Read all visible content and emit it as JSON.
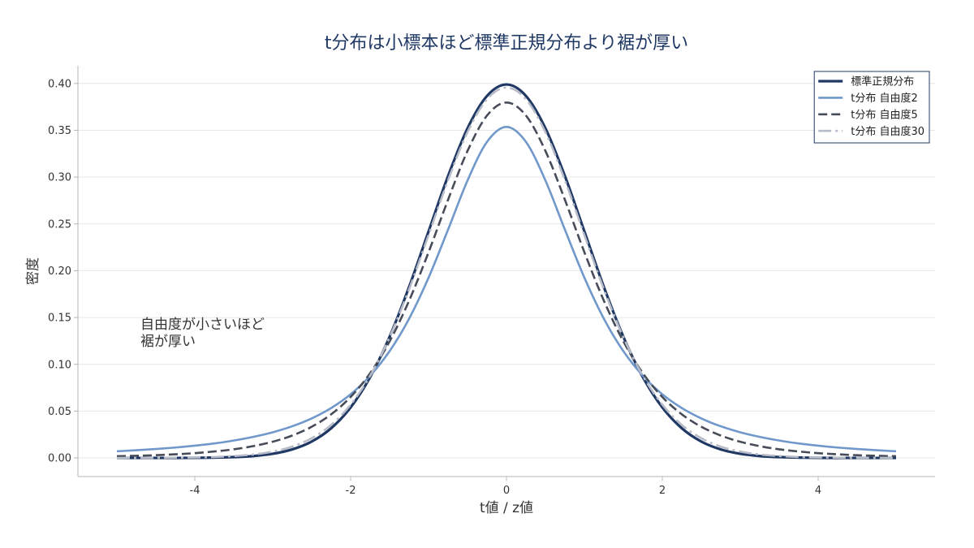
{
  "chart_data": {
    "type": "line",
    "title": "t分布は小標本ほど標準正規分布より裾が厚い",
    "xlabel": "t値 / z値",
    "ylabel": "密度",
    "xlim": [
      -5.5,
      5.5
    ],
    "ylim": [
      -0.0199,
      0.4189
    ],
    "xticks": [
      -4,
      -2,
      0,
      2,
      4
    ],
    "xtick_labels": [
      "-4",
      "-2",
      "0",
      "2",
      "4"
    ],
    "yticks": [
      0,
      0.05,
      0.1,
      0.15,
      0.2,
      0.25,
      0.3,
      0.35,
      0.4
    ],
    "ytick_labels": [
      "0.00",
      "0.05",
      "0.10",
      "0.15",
      "0.20",
      "0.25",
      "0.30",
      "0.35",
      "0.40"
    ],
    "grid": "y",
    "legend": "top-right",
    "annotation": [
      "自由度が小さいほど",
      "裾が厚い"
    ],
    "x": [
      -5,
      -4.75,
      -4.5,
      -4.25,
      -4,
      -3.75,
      -3.5,
      -3.25,
      -3,
      -2.75,
      -2.5,
      -2.25,
      -2,
      -1.75,
      -1.5,
      -1.25,
      -1,
      -0.75,
      -0.5,
      -0.25,
      0,
      0.25,
      0.5,
      0.75,
      1,
      1.25,
      1.5,
      1.75,
      2,
      2.25,
      2.5,
      2.75,
      3,
      3.25,
      3.5,
      3.75,
      4,
      4.25,
      4.5,
      4.75,
      5
    ],
    "series": [
      {
        "name": "標準正規分布",
        "color": "#1f3864",
        "line_style": "solid",
        "values": [
          0,
          0,
          0,
          0,
          0.0001,
          0.0004,
          0.0009,
          0.002,
          0.0044,
          0.0091,
          0.0175,
          0.0317,
          0.054,
          0.0863,
          0.1295,
          0.1826,
          0.242,
          0.3011,
          0.3521,
          0.3867,
          0.3989,
          0.3867,
          0.3521,
          0.3011,
          0.242,
          0.1826,
          0.1295,
          0.0863,
          0.054,
          0.0317,
          0.0175,
          0.0091,
          0.0044,
          0.002,
          0.0009,
          0.0004,
          0.0001,
          0,
          0,
          0,
          0
        ]
      },
      {
        "name": "t分布 自由度2",
        "color": "#7098cb",
        "line_style": "solid",
        "values": [
          0.0071,
          0.0082,
          0.0095,
          0.0111,
          0.0131,
          0.0155,
          0.0186,
          0.0225,
          0.0274,
          0.0338,
          0.0422,
          0.0533,
          0.068,
          0.0878,
          0.1141,
          0.1487,
          0.1925,
          0.2438,
          0.2963,
          0.3376,
          0.3536,
          0.3376,
          0.2963,
          0.2438,
          0.1925,
          0.1487,
          0.1141,
          0.0878,
          0.068,
          0.0533,
          0.0422,
          0.0338,
          0.0274,
          0.0225,
          0.0186,
          0.0155,
          0.0131,
          0.0111,
          0.0095,
          0.0082,
          0.0071
        ]
      },
      {
        "name": "t分布 自由度5",
        "color": "#474c59",
        "line_style": "dashed",
        "values": [
          0.0018,
          0.0023,
          0.0029,
          0.0039,
          0.0051,
          0.0069,
          0.0092,
          0.0126,
          0.0173,
          0.0239,
          0.0333,
          0.0466,
          0.0651,
          0.0905,
          0.1245,
          0.1679,
          0.2197,
          0.2757,
          0.3279,
          0.3657,
          0.3796,
          0.3657,
          0.3279,
          0.2757,
          0.2197,
          0.1679,
          0.1245,
          0.0905,
          0.0651,
          0.0466,
          0.0333,
          0.0239,
          0.0173,
          0.0126,
          0.0092,
          0.0069,
          0.0051,
          0.0039,
          0.0029,
          0.0023,
          0.0018
        ]
      },
      {
        "name": "t分布 自由度30",
        "color": "#b8bcc8",
        "line_style": "dashdot",
        "values": [
          0,
          0.0001,
          0.0001,
          0.0003,
          0.0005,
          0.001,
          0.002,
          0.0037,
          0.0068,
          0.0121,
          0.0211,
          0.0353,
          0.0569,
          0.0877,
          0.129,
          0.1801,
          0.238,
          0.2966,
          0.3479,
          0.3831,
          0.3956,
          0.3831,
          0.3479,
          0.2966,
          0.238,
          0.1801,
          0.129,
          0.0877,
          0.0569,
          0.0353,
          0.0211,
          0.0121,
          0.0068,
          0.0037,
          0.002,
          0.001,
          0.0005,
          0.0003,
          0.0001,
          0.0001,
          0
        ]
      }
    ]
  }
}
